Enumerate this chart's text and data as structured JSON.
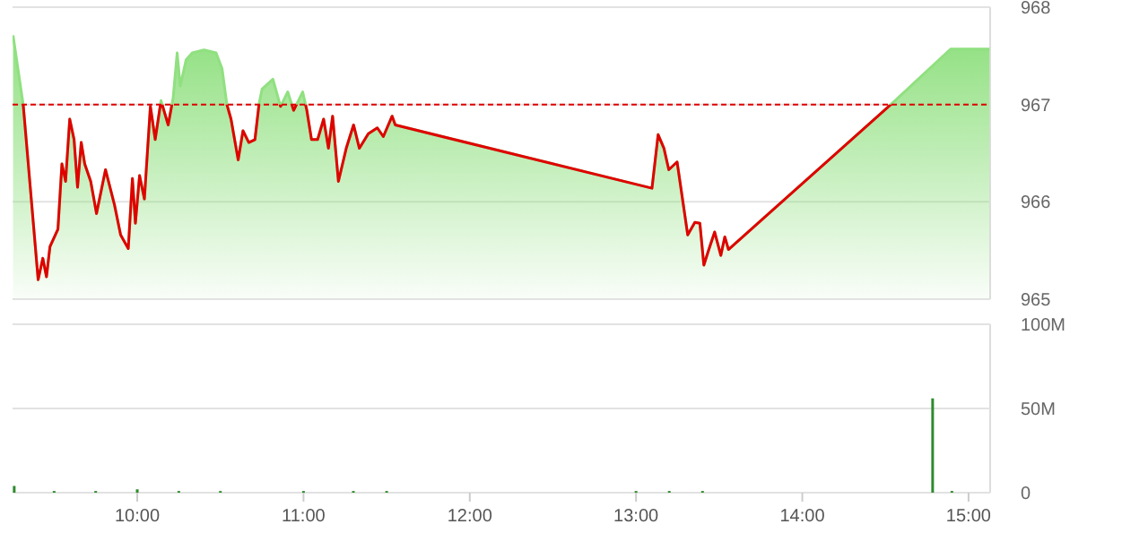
{
  "chart_data": [
    {
      "type": "area",
      "x": [
        9.253,
        9.314,
        9.404,
        9.432,
        9.454,
        9.475,
        9.523,
        9.547,
        9.569,
        9.594,
        9.62,
        9.641,
        9.663,
        9.684,
        9.72,
        9.755,
        9.809,
        9.863,
        9.9,
        9.946,
        9.971,
        9.989,
        10.014,
        10.043,
        10.079,
        10.108,
        10.143,
        10.186,
        10.216,
        10.24,
        10.259,
        10.294,
        10.331,
        10.402,
        10.474,
        10.51,
        10.539,
        10.564,
        10.607,
        10.636,
        10.671,
        10.708,
        10.733,
        10.751,
        10.816,
        10.862,
        10.905,
        10.941,
        10.995,
        11.02,
        11.048,
        11.085,
        11.121,
        11.15,
        11.175,
        11.21,
        11.257,
        11.301,
        11.336,
        11.39,
        11.444,
        11.48,
        11.533,
        11.552,
        13.096,
        13.133,
        13.168,
        13.197,
        13.247,
        13.311,
        13.354,
        13.384,
        13.408,
        13.438,
        13.473,
        13.51,
        13.534,
        13.556,
        14.533,
        14.892,
        15.126
      ],
      "series": [
        {
          "color": "#90e080",
          "values": [
            967.71,
            967.0,
            965.2,
            965.42,
            965.23,
            965.54,
            965.72,
            966.39,
            966.21,
            966.85,
            966.64,
            966.15,
            966.61,
            966.39,
            966.21,
            965.88,
            966.33,
            965.97,
            965.66,
            965.52,
            966.24,
            965.78,
            966.27,
            966.03,
            966.98,
            966.64,
            967.04,
            966.79,
            967.07,
            967.53,
            967.19,
            967.46,
            967.53,
            967.56,
            967.53,
            967.37,
            967.0,
            966.85,
            966.43,
            966.73,
            966.61,
            966.64,
            967.01,
            967.16,
            967.26,
            966.98,
            967.13,
            966.94,
            967.13,
            966.94,
            966.64,
            966.64,
            966.85,
            966.55,
            966.88,
            966.21,
            966.55,
            966.79,
            966.55,
            966.7,
            966.76,
            966.67,
            966.88,
            966.79,
            966.14,
            966.69,
            966.55,
            966.33,
            966.41,
            965.66,
            965.79,
            965.78,
            965.35,
            965.51,
            965.69,
            965.45,
            965.64,
            965.51,
            967.0,
            967.57,
            967.57
          ]
        }
      ],
      "xlim": [
        9.25,
        15.13
      ],
      "ylim": [
        965,
        968
      ],
      "yticks": [
        965,
        966,
        967,
        968
      ],
      "grid": "y",
      "tick_labels": "y",
      "ref_lines": [
        {
          "axis": "y",
          "value": 967,
          "color": "#e00000",
          "line_style": "dashed"
        }
      ]
    },
    {
      "type": "bar",
      "x": [
        9.26,
        9.5,
        9.75,
        10.0,
        10.25,
        10.5,
        11.0,
        11.3,
        11.5,
        13.0,
        13.2,
        13.4,
        14.784,
        14.9
      ],
      "series": [
        {
          "color": "#2e8b2e",
          "values": [
            4,
            1,
            1,
            2,
            1,
            1,
            1,
            1,
            1,
            1,
            1,
            1,
            56,
            1
          ]
        }
      ],
      "xlim": [
        9.25,
        15.13
      ],
      "ylim": [
        0,
        100
      ],
      "yticks": [
        0,
        {
          "value": 50,
          "label": "50M"
        },
        {
          "value": 100,
          "label": "100M"
        }
      ],
      "xticks": [
        {
          "value": 10,
          "label": "10:00"
        },
        {
          "value": 11,
          "label": "11:00"
        },
        {
          "value": 12,
          "label": "12:00"
        },
        {
          "value": 13,
          "label": "13:00"
        },
        {
          "value": 14,
          "label": "14:00"
        },
        {
          "value": 15,
          "label": "15:00"
        }
      ],
      "grid": "y"
    }
  ]
}
